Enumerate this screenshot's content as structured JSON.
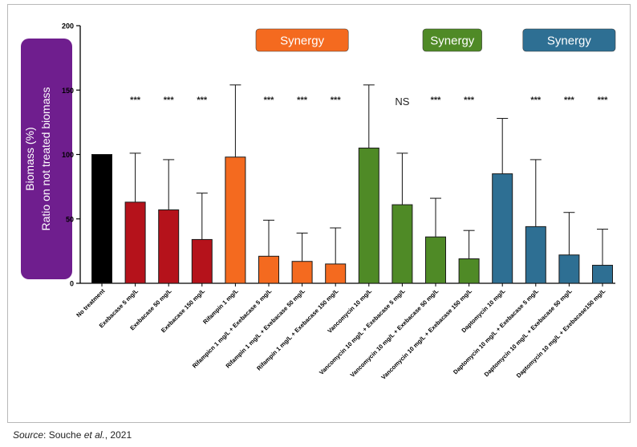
{
  "y_axis_label": {
    "line1": "Biomass (%)",
    "line2": "Ratio on not treated biomass"
  },
  "source": {
    "prefix": "Source",
    "text": ": Souche ",
    "etal": "et al.",
    "year": ", 2021"
  },
  "colors": {
    "black": "#000000",
    "red": "#b5121b",
    "orange": "#f46a1f",
    "green": "#4f8a26",
    "blue": "#2e6f93",
    "purple": "#6f1e8e"
  },
  "chart_data": {
    "type": "bar",
    "ylim": [
      0,
      200
    ],
    "yticks": [
      0,
      50,
      100,
      150,
      200
    ],
    "error_bars": "upper only",
    "categories": [
      "No treatment",
      "Exebacase 5 mg/L",
      "Exebacase 50 mg/L",
      "Exebacase 150 mg/L",
      "Rifampin 1 mg/L",
      "Rifampicn 1 mg/L + Exebacase 5 mg/L",
      "Rifampin 1 mg/L + Exebacase 50 mg/L",
      "Rifampin 1 mg/L + Exebacase 150 mg/L",
      "Vancomycin 10 mg/L",
      "Vancomycin 10 mg/L + Exebacase 5 mg/L",
      "Vancomycin 10 mg/L + Exebacase 50 mg/L",
      "Vancomycin 10 mg/L + Exebacase 150 mg/L",
      "Daptomycin 10 mg/L",
      "Daptomycin 10 mg/L + Exebacase 5 mg/L",
      "Daptomycin 10 mg/L + Exebacase 50 mg/L",
      "Daptomycin 10 mg/L + Exebacase150 mg/L"
    ],
    "values": [
      100,
      63,
      57,
      34,
      98,
      21,
      17,
      15,
      105,
      61,
      36,
      19,
      85,
      44,
      22,
      14
    ],
    "error_upper": [
      100,
      101,
      96,
      70,
      154,
      49,
      39,
      43,
      154,
      101,
      66,
      41,
      128,
      96,
      55,
      42
    ],
    "bar_colors": [
      "black",
      "red",
      "red",
      "red",
      "orange",
      "orange",
      "orange",
      "orange",
      "green",
      "green",
      "green",
      "green",
      "blue",
      "blue",
      "blue",
      "blue"
    ],
    "significance": [
      "",
      "***",
      "***",
      "***",
      "",
      "***",
      "***",
      "***",
      "",
      "NS",
      "***",
      "***",
      "",
      "***",
      "***",
      "***"
    ],
    "annotations": [
      {
        "text": "Synergy",
        "color": "orange",
        "over": [
          5,
          7
        ]
      },
      {
        "text": "Synergy",
        "color": "green",
        "over": [
          10,
          11
        ]
      },
      {
        "text": "Synergy",
        "color": "blue",
        "over": [
          13,
          15
        ]
      }
    ]
  }
}
